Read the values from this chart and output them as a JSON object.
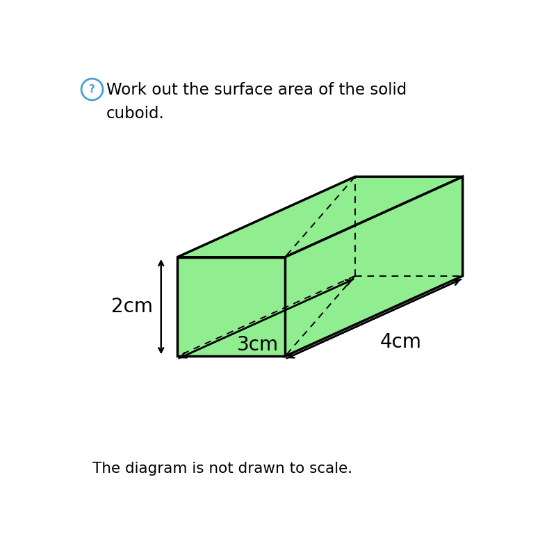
{
  "title_line1": "Work out the surface area of the solid",
  "title_line2": "cuboid.",
  "title_icon": "?",
  "footer_text": "The diagram is not drawn to scale.",
  "dim_width": "3cm",
  "dim_depth": "4cm",
  "dim_height": "2cm",
  "face_color": "#90EE90",
  "edge_color": "#000000",
  "background_color": "#ffffff",
  "figsize": [
    8.0,
    8.01
  ],
  "dpi": 100,
  "icon_color": "#4a9fd4"
}
